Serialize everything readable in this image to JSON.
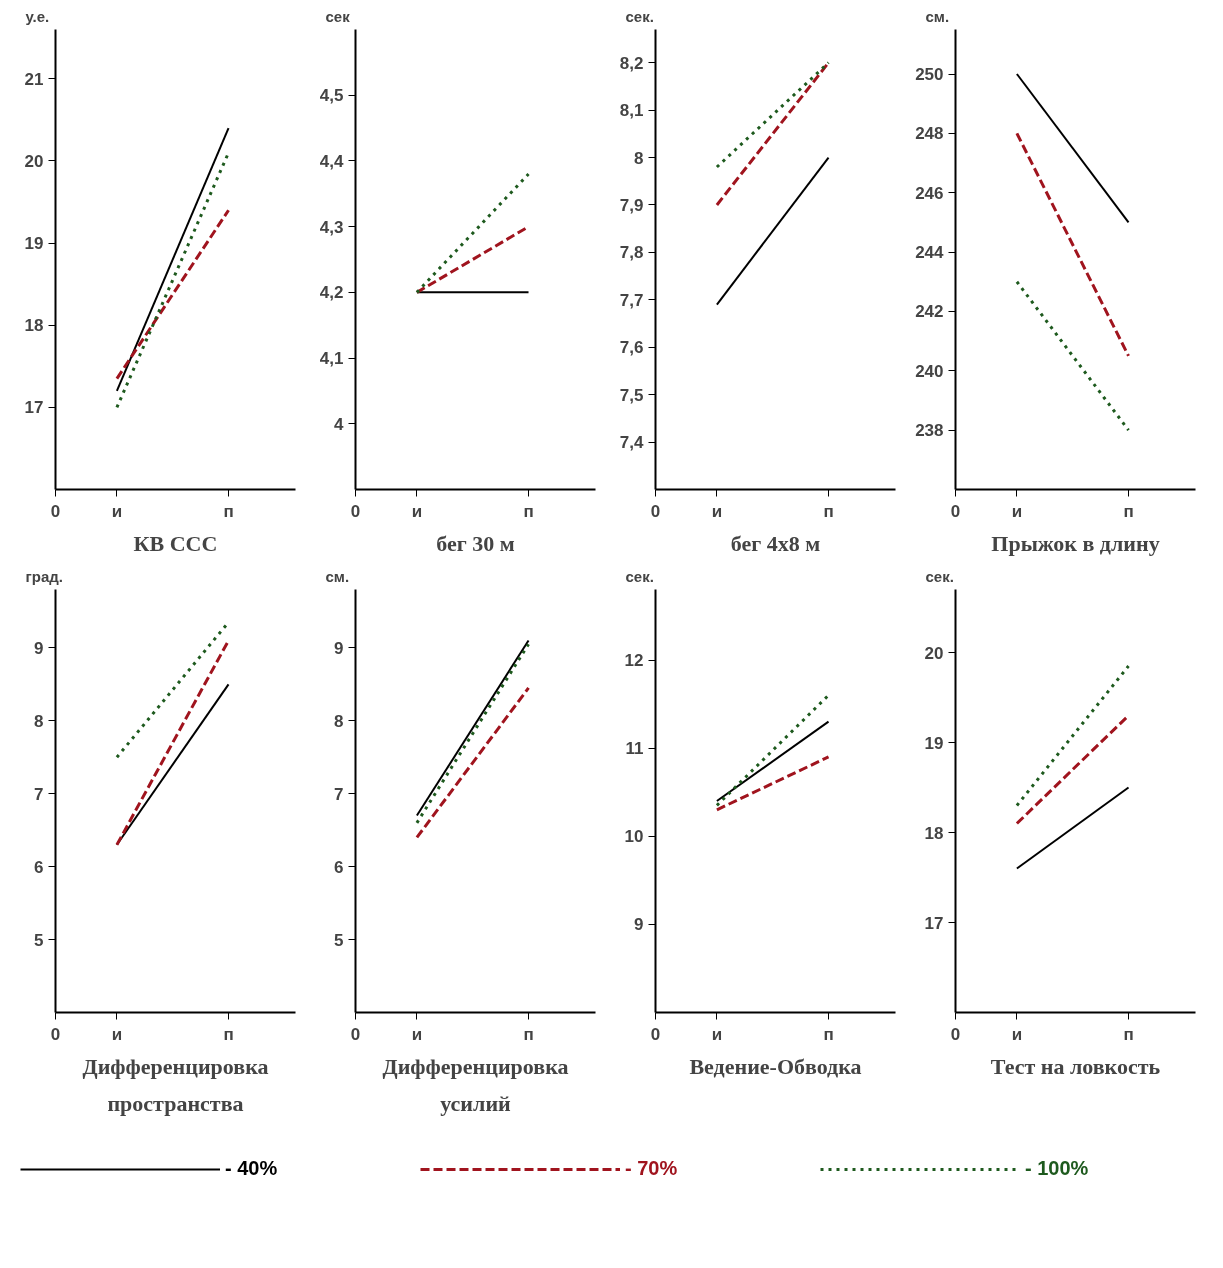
{
  "chart_data": [
    {
      "type": "line",
      "title": "КВ ССС",
      "ylabel": "у.е.",
      "annotations": [
        "0"
      ],
      "categories": [
        "и",
        "п"
      ],
      "ylim": [
        16,
        21.6
      ],
      "yticks": [
        17,
        18,
        19,
        20,
        21
      ],
      "grid": false,
      "series": [
        {
          "color": "#000000",
          "line_style": "solid",
          "values": [
            17.2,
            20.4
          ]
        },
        {
          "color": "#a0141e",
          "line_style": "dashed",
          "values": [
            17.35,
            19.4
          ]
        },
        {
          "color": "#1e5a1e",
          "line_style": "dotted",
          "values": [
            17.0,
            20.1
          ]
        }
      ]
    },
    {
      "type": "line",
      "title": "бег 30 м",
      "ylabel": "сек",
      "annotations": [
        "0"
      ],
      "categories": [
        "и",
        "п"
      ],
      "ylim": [
        3.9,
        4.6
      ],
      "yticks": [
        4,
        {
          "value": 4.1,
          "label": "4,1"
        },
        {
          "value": 4.2,
          "label": "4,2"
        },
        {
          "value": 4.3,
          "label": "4,3"
        },
        {
          "value": 4.4,
          "label": "4,4"
        },
        {
          "value": 4.5,
          "label": "4,5"
        }
      ],
      "grid": false,
      "series": [
        {
          "color": "#000000",
          "line_style": "solid",
          "values": [
            4.2,
            4.2
          ]
        },
        {
          "color": "#a0141e",
          "line_style": "dashed",
          "values": [
            4.2,
            4.3
          ]
        },
        {
          "color": "#1e5a1e",
          "line_style": "dotted",
          "values": [
            4.2,
            4.38
          ]
        }
      ]
    },
    {
      "type": "line",
      "title": "бег 4х8 м",
      "ylabel": "сек.",
      "annotations": [
        "0"
      ],
      "categories": [
        "и",
        "п"
      ],
      "ylim": [
        7.3,
        8.27
      ],
      "yticks": [
        {
          "value": 7.4,
          "label": "7,4"
        },
        {
          "value": 7.5,
          "label": "7,5"
        },
        {
          "value": 7.6,
          "label": "7,6"
        },
        {
          "value": 7.7,
          "label": "7,7"
        },
        {
          "value": 7.8,
          "label": "7,8"
        },
        {
          "value": 7.9,
          "label": "7,9"
        },
        8,
        {
          "value": 8.1,
          "label": "8,1"
        },
        {
          "value": 8.2,
          "label": "8,2"
        }
      ],
      "grid": false,
      "series": [
        {
          "color": "#000000",
          "line_style": "solid",
          "values": [
            7.69,
            8.0
          ]
        },
        {
          "color": "#a0141e",
          "line_style": "dashed",
          "values": [
            7.9,
            8.2
          ]
        },
        {
          "color": "#1e5a1e",
          "line_style": "dotted",
          "values": [
            7.98,
            8.2
          ]
        }
      ]
    },
    {
      "type": "line",
      "title": "Прыжок в длину",
      "ylabel": "см.",
      "annotations": [
        "0"
      ],
      "categories": [
        "и",
        "п"
      ],
      "ylim": [
        236,
        251.5
      ],
      "yticks": [
        238,
        240,
        242,
        244,
        246,
        248,
        250
      ],
      "grid": false,
      "series": [
        {
          "color": "#000000",
          "line_style": "solid",
          "values": [
            250,
            245
          ]
        },
        {
          "color": "#a0141e",
          "line_style": "dashed",
          "values": [
            248,
            240.5
          ]
        },
        {
          "color": "#1e5a1e",
          "line_style": "dotted",
          "values": [
            243,
            238
          ]
        }
      ]
    },
    {
      "type": "line",
      "title": "Дифференцировка пространства",
      "ylabel": "град.",
      "annotations": [
        "0"
      ],
      "categories": [
        "и",
        "п"
      ],
      "ylim": [
        4,
        9.8
      ],
      "yticks": [
        5,
        6,
        7,
        8,
        9
      ],
      "grid": false,
      "series": [
        {
          "color": "#000000",
          "line_style": "solid",
          "values": [
            6.3,
            8.5
          ]
        },
        {
          "color": "#a0141e",
          "line_style": "dashed",
          "values": [
            6.3,
            9.1
          ]
        },
        {
          "color": "#1e5a1e",
          "line_style": "dotted",
          "values": [
            7.5,
            9.35
          ]
        }
      ]
    },
    {
      "type": "line",
      "title": "Дифференцировка усилий",
      "ylabel": "см.",
      "annotations": [
        "0"
      ],
      "categories": [
        "и",
        "п"
      ],
      "ylim": [
        4,
        9.8
      ],
      "yticks": [
        5,
        6,
        7,
        8,
        9
      ],
      "grid": false,
      "series": [
        {
          "color": "#000000",
          "line_style": "solid",
          "values": [
            6.7,
            9.1
          ]
        },
        {
          "color": "#a0141e",
          "line_style": "dashed",
          "values": [
            6.4,
            8.45
          ]
        },
        {
          "color": "#1e5a1e",
          "line_style": "dotted",
          "values": [
            6.6,
            9.05
          ]
        }
      ]
    },
    {
      "type": "line",
      "title": "Ведение-Обводка",
      "ylabel": "сек.",
      "annotations": [
        "0"
      ],
      "categories": [
        "и",
        "п"
      ],
      "ylim": [
        8,
        12.8
      ],
      "yticks": [
        9,
        10,
        11,
        12
      ],
      "grid": false,
      "series": [
        {
          "color": "#000000",
          "line_style": "solid",
          "values": [
            10.4,
            11.3
          ]
        },
        {
          "color": "#a0141e",
          "line_style": "dashed",
          "values": [
            10.3,
            10.9
          ]
        },
        {
          "color": "#1e5a1e",
          "line_style": "dotted",
          "values": [
            10.35,
            11.6
          ]
        }
      ]
    },
    {
      "type": "line",
      "title": "Тест на ловкость",
      "ylabel": "сек.",
      "annotations": [
        "0"
      ],
      "categories": [
        "и",
        "п"
      ],
      "ylim": [
        16,
        20.7
      ],
      "yticks": [
        17,
        18,
        19,
        20
      ],
      "grid": false,
      "legend": "bottom",
      "series": [
        {
          "name": "- 40%",
          "color": "#000000",
          "line_style": "solid",
          "values": [
            17.6,
            18.5
          ]
        },
        {
          "name": "- 70%",
          "color": "#a0141e",
          "line_style": "dashed",
          "values": [
            18.1,
            19.3
          ]
        },
        {
          "name": "- 100%",
          "color": "#1e5a1e",
          "line_style": "dotted",
          "values": [
            18.3,
            19.85
          ]
        }
      ]
    }
  ]
}
